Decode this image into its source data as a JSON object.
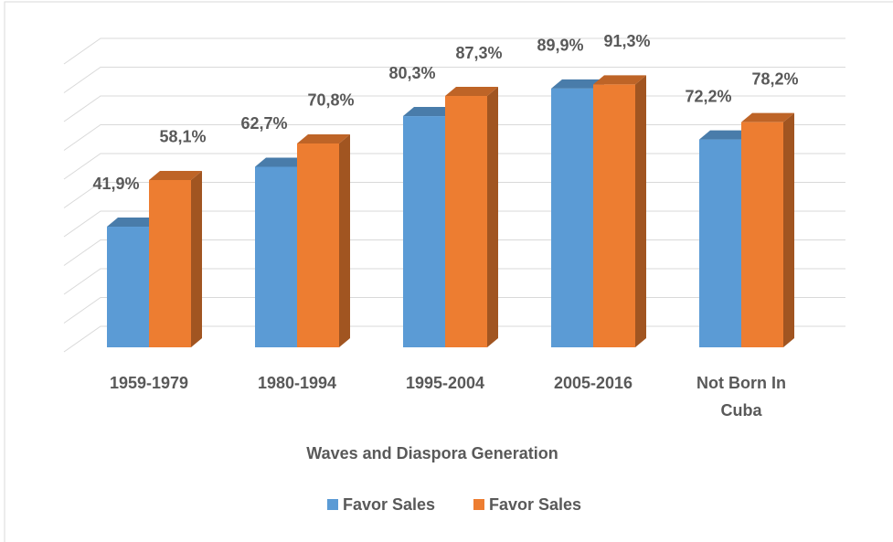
{
  "chart_data": {
    "type": "bar",
    "x_label": "Waves and Diaspora Generation",
    "categories": [
      "1959-1979",
      "1980-1994",
      "1995-2004",
      "2005-2016",
      "Not Born In Cuba"
    ],
    "series": [
      {
        "name": "Favor Sales",
        "color": "#5b9bd5",
        "values": [
          41.9,
          62.7,
          80.3,
          89.9,
          72.2
        ],
        "value_labels": [
          "41,9%",
          "62,7%",
          "80,3%",
          "89,9%",
          "72,2%"
        ]
      },
      {
        "name": "Favor Sales",
        "color": "#ed7d31",
        "values": [
          58.1,
          70.8,
          87.3,
          91.3,
          78.2
        ],
        "value_labels": [
          "58,1%",
          "70,8%",
          "87,3%",
          "91,3%",
          "78,2%"
        ]
      }
    ],
    "ylim": [
      0,
      100
    ],
    "yticks": [
      0,
      10,
      20,
      30,
      40,
      50,
      60,
      70,
      80,
      90,
      100
    ],
    "grid": true
  }
}
